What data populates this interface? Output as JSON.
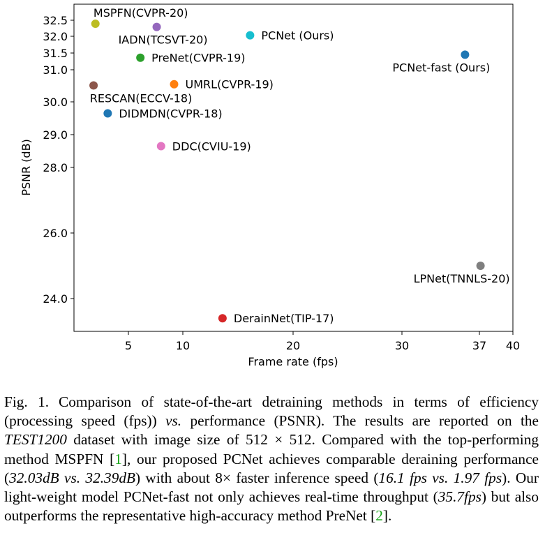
{
  "chart_data": {
    "type": "scatter",
    "xlabel": "Frame rate (fps)",
    "ylabel": "PSNR (dB)",
    "xlim": [
      0,
      40
    ],
    "ylim": [
      23.0,
      33.0
    ],
    "x_ticks": [
      5,
      10,
      20,
      30,
      37,
      40
    ],
    "y_ticks": [
      24.0,
      26.0,
      28.0,
      29.0,
      30.0,
      31.0,
      31.5,
      32.0,
      32.5
    ],
    "y_tick_labels": [
      "24.0",
      "26.0",
      "28.0",
      "29.0",
      "30.0",
      "31.0",
      "31.5",
      "32.0",
      "32.5"
    ],
    "grid": false,
    "points": [
      {
        "label": "MSPFN(CVPR-20)",
        "x": 1.97,
        "y": 32.39,
        "color": "#bcbd22",
        "label_pos": "above"
      },
      {
        "label": "IADN(TCSVT-20)",
        "x": 7.6,
        "y": 32.29,
        "color": "#9467bd",
        "label_pos": "below"
      },
      {
        "label": "PCNet (Ours)",
        "x": 16.1,
        "y": 32.03,
        "color": "#17becf",
        "label_pos": "right"
      },
      {
        "label": "PreNet(CVPR-19)",
        "x": 6.1,
        "y": 31.36,
        "color": "#2ca02c",
        "label_pos": "right"
      },
      {
        "label": "PCNet-fast (Ours)",
        "x": 35.7,
        "y": 31.45,
        "color": "#1f77b4",
        "label_pos": "below"
      },
      {
        "label": "RESCAN(ECCV-18)",
        "x": 1.8,
        "y": 30.51,
        "color": "#8c564b",
        "label_pos": "below"
      },
      {
        "label": "UMRL(CVPR-19)",
        "x": 9.2,
        "y": 30.55,
        "color": "#ff7f0e",
        "label_pos": "right"
      },
      {
        "label": "DIDMDN(CVPR-18)",
        "x": 3.1,
        "y": 29.65,
        "color": "#1f77b4",
        "label_pos": "right"
      },
      {
        "label": "DDC(CVIU-19)",
        "x": 8.0,
        "y": 28.65,
        "color": "#e377c2",
        "label_pos": "right"
      },
      {
        "label": "LPNet(TNNLS-20)",
        "x": 37.1,
        "y": 25.0,
        "color": "#7f7f7f",
        "label_pos": "below"
      },
      {
        "label": "DerainNet(TIP-17)",
        "x": 13.6,
        "y": 23.4,
        "color": "#d62728",
        "label_pos": "right"
      }
    ]
  },
  "caption": {
    "fig_label": "Fig. 1.",
    "p1": "Comparison of state-of-the-art detraining methods in terms of efficiency (processing speed (fps)) ",
    "vs1": "vs.",
    "p2": " performance (PSNR). The results are reported on the ",
    "dataset": "TEST1200",
    "p3": " dataset with image size of 512 × 512. Compared with the top-performing method MSPFN [",
    "cite1": "1",
    "p4": "], our proposed PCNet achieves comparable deraining performance (",
    "comp1": "32.03dB vs. 32.39dB",
    "p5": ") with about 8× faster inference speed (",
    "comp2": "16.1 fps vs. 1.97 fps",
    "p6": "). Our light-weight model PCNet-fast not only achieves real-time throughput (",
    "comp3": "35.7fps",
    "p7": ") but also outperforms the representative high-accuracy method PreNet [",
    "cite2": "2",
    "p8": "]."
  }
}
